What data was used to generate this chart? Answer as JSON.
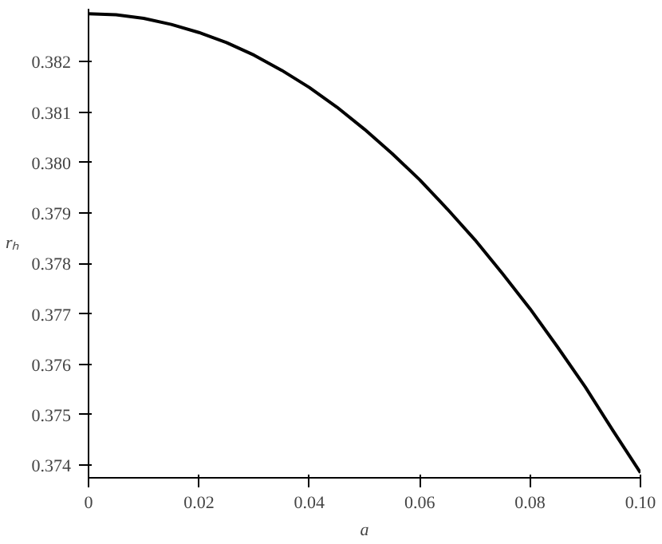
{
  "chart_data": {
    "type": "line",
    "xlabel": "a",
    "ylabel": "rₕ",
    "x": [
      0,
      0.005,
      0.01,
      0.015,
      0.02,
      0.025,
      0.03,
      0.035,
      0.04,
      0.045,
      0.05,
      0.055,
      0.06,
      0.065,
      0.07,
      0.075,
      0.08,
      0.085,
      0.09,
      0.095,
      0.1
    ],
    "series": [
      {
        "color": "#000000",
        "values": [
          0.38295,
          0.38293,
          0.38286,
          0.38274,
          0.38258,
          0.38238,
          0.38213,
          0.38183,
          0.38149,
          0.3811,
          0.38066,
          0.38018,
          0.37966,
          0.37908,
          0.37847,
          0.3778,
          0.3771,
          0.37634,
          0.37555,
          0.37469,
          0.37385
        ]
      }
    ],
    "xlim": [
      0,
      0.1
    ],
    "ylim": [
      0.37375,
      0.38305
    ],
    "xticks": [
      0,
      0.02,
      0.04,
      0.06,
      0.08,
      {
        "value": 0.1,
        "label": "0.10"
      }
    ],
    "yticks": [
      0.374,
      0.375,
      0.376,
      0.377,
      0.378,
      0.379,
      {
        "value": 0.38,
        "label": "0.380"
      },
      0.381,
      0.382
    ],
    "grid": false,
    "marker": "none",
    "line_style": "solid"
  }
}
